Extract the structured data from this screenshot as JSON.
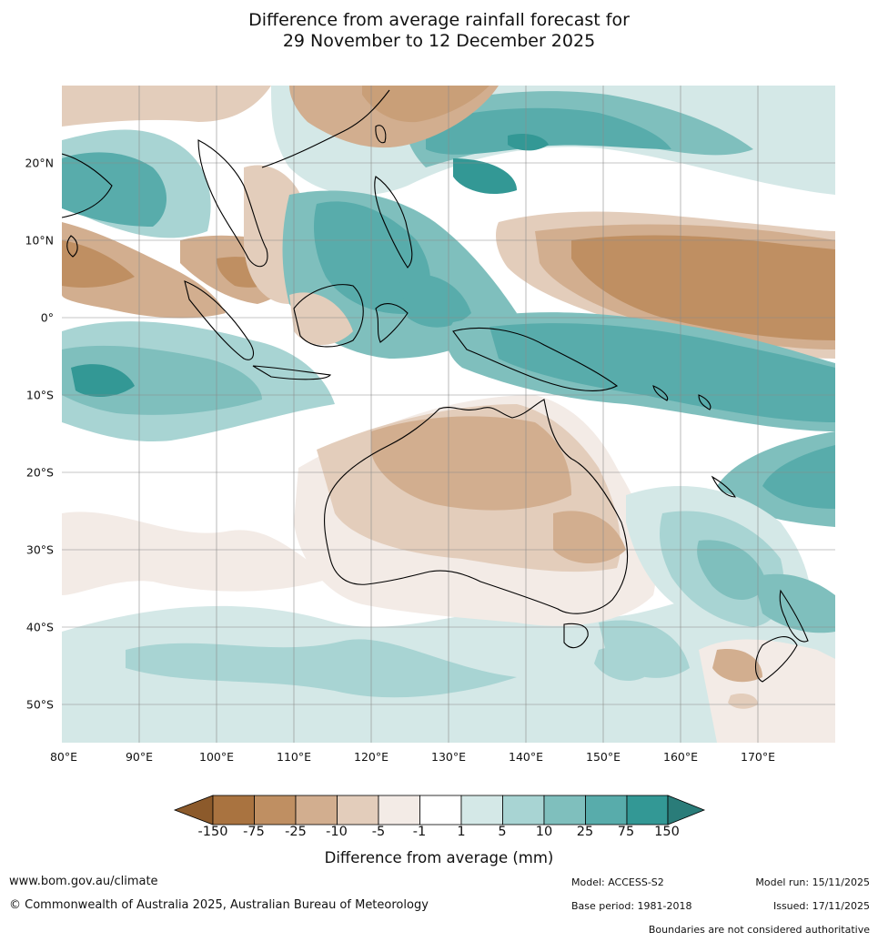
{
  "title": {
    "line1": "Difference from average rainfall forecast for",
    "line2": "29 November to 12 December 2025"
  },
  "map": {
    "region": "Maritime Continent, Australia and Western Pacific",
    "lat_labels": [
      "20°N",
      "10°N",
      "0°",
      "10°S",
      "20°S",
      "30°S",
      "40°S",
      "50°S"
    ],
    "lat_values": [
      20,
      10,
      0,
      -10,
      -20,
      -30,
      -40,
      -50
    ],
    "lon_labels": [
      "80°E",
      "90°E",
      "100°E",
      "110°E",
      "120°E",
      "130°E",
      "140°E",
      "150°E",
      "160°E",
      "170°E"
    ],
    "lon_values": [
      80,
      90,
      100,
      110,
      120,
      130,
      140,
      150,
      160,
      170
    ],
    "extent": {
      "lon_min": 80,
      "lon_max": 180,
      "lat_min": -55,
      "lat_max": 30
    }
  },
  "legend": {
    "title": "Difference from average (mm)",
    "tick_labels": [
      "-150",
      "-75",
      "-25",
      "-10",
      "-5",
      "-1",
      "1",
      "5",
      "10",
      "25",
      "75",
      "150"
    ],
    "colors": {
      "below_min": "#8c5a2b",
      "bins": [
        "#a97340",
        "#bf8f62",
        "#d2ae8f",
        "#e3cdbb",
        "#f3ebe6",
        "#ffffff",
        "#d4e8e7",
        "#a8d4d3",
        "#7fbfbd",
        "#58acab",
        "#339895"
      ],
      "above_max": "#2a7c79"
    }
  },
  "footer": {
    "website": "www.bom.gov.au/climate",
    "copyright": "© Commonwealth of Australia 2025, Australian Bureau of Meteorology",
    "model": "Model: ACCESS-S2",
    "base_period": "Base period: 1981-2018",
    "model_run": "Model run: 15/11/2025",
    "issued": "Issued: 17/11/2025",
    "boundaries_note": "Boundaries are not considered authoritative"
  }
}
